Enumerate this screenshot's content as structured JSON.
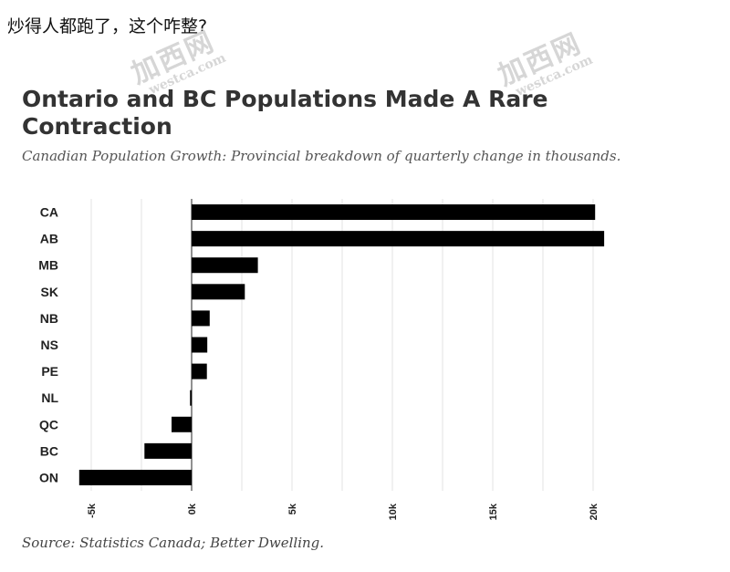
{
  "caption": "炒得人都跑了，这个咋整?",
  "watermark": {
    "text": "加西网",
    "site": "westca.com"
  },
  "colors": {
    "bar": "#000000",
    "grid": "#e3e3e3",
    "zero_line": "#222222",
    "title": "#333333"
  },
  "chart_data": {
    "type": "bar",
    "orientation": "horizontal",
    "title": "Ontario and BC Populations Made A Rare Contraction",
    "subtitle": "Canadian Population Growth: Provincial breakdown of quarterly change in thousands.",
    "source": "Source: Statistics Canada; Better Dwelling.",
    "xlabel": "",
    "ylabel": "",
    "categories": [
      "CA",
      "AB",
      "MB",
      "SK",
      "NB",
      "NS",
      "PE",
      "NL",
      "QC",
      "BC",
      "ON"
    ],
    "values": [
      20100,
      20550,
      3300,
      2650,
      900,
      780,
      760,
      -80,
      -1000,
      -2350,
      -5600
    ],
    "xlim": [
      -5500,
      21000
    ],
    "xticks": [
      -5000,
      0,
      5000,
      10000,
      15000,
      20000
    ],
    "xtick_labels": [
      "-5k",
      "0k",
      "5k",
      "10k",
      "15k",
      "20k"
    ],
    "grid": true,
    "legend": "none"
  }
}
